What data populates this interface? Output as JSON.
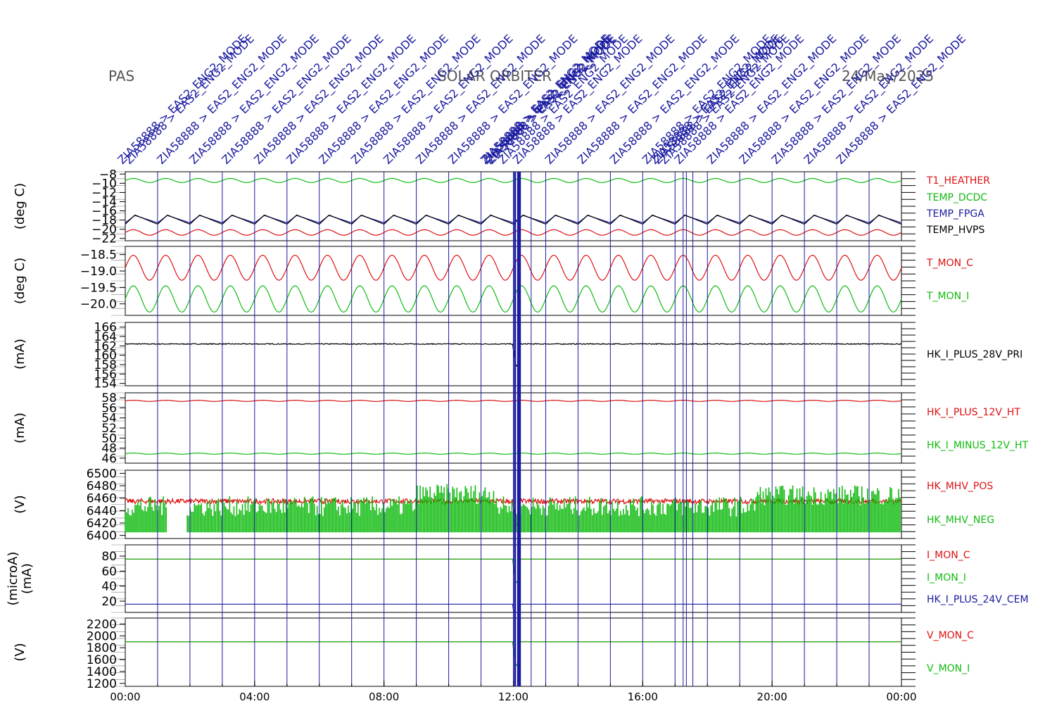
{
  "header": {
    "instrument": "PAS",
    "mission": "SOLAR ORBITER",
    "date": "24/May/2025"
  },
  "event_label": "ZIA58888 > EAS2_ENG2_MODE",
  "event_label_color": "#1a1aa0",
  "time_axis": {
    "ticks": [
      "00:00",
      "04:00",
      "08:00",
      "12:00",
      "16:00",
      "20:00",
      "00:00"
    ],
    "range_hours": [
      0,
      24
    ]
  },
  "event_marker_hours": [
    1,
    2,
    3,
    4,
    5,
    6,
    7,
    8,
    9,
    10,
    11,
    12,
    12.05,
    12.15,
    12.2,
    12.55,
    13,
    14,
    15,
    16,
    17,
    17.25,
    17.35,
    17.55,
    18,
    19,
    20,
    21,
    22,
    23
  ],
  "chart_data": [
    {
      "type": "line",
      "ylabel": "(deg C)",
      "yticks": [
        "-8",
        "-10",
        "-12",
        "-14",
        "-16",
        "-18",
        "-20",
        "-22"
      ],
      "ylim": [
        -22.5,
        -7.5
      ],
      "series": [
        {
          "name": "T1_HEATHER",
          "color": "#dd1111",
          "base": -20.7,
          "amp": 0.6,
          "period_h": 1.0,
          "shape": "sine"
        },
        {
          "name": "TEMP_DCDC",
          "color": "#11bb11",
          "base": -9.4,
          "amp": 0.45,
          "period_h": 1.0,
          "shape": "sine"
        },
        {
          "name": "TEMP_FPGA",
          "color": "#1a1aa0",
          "base": -17.8,
          "amp": 0.8,
          "period_h": 1.0,
          "shape": "saw"
        },
        {
          "name": "TEMP_HVPS",
          "color": "#000000",
          "base": -17.9,
          "amp": 1.0,
          "period_h": 1.0,
          "shape": "saw"
        }
      ]
    },
    {
      "type": "line",
      "ylabel": "(deg C)",
      "yticks": [
        "-18.5",
        "-19.0",
        "-19.5",
        "-20.0"
      ],
      "ylim": [
        -20.35,
        -18.25
      ],
      "series": [
        {
          "name": "T_MON_C",
          "color": "#dd1111",
          "base": -18.9,
          "amp": 0.38,
          "period_h": 1.0,
          "shape": "sine"
        },
        {
          "name": "T_MON_I",
          "color": "#11bb11",
          "base": -19.85,
          "amp": 0.4,
          "period_h": 1.0,
          "shape": "sine"
        }
      ]
    },
    {
      "type": "line",
      "ylabel": "(mA)",
      "yticks": [
        "166",
        "164",
        "162",
        "160",
        "158",
        "156",
        "154"
      ],
      "ylim": [
        153.5,
        167
      ],
      "series": [
        {
          "name": "HK_I_PLUS_28V_PRI",
          "color": "#000000",
          "base": 162.4,
          "amp": 0.1,
          "period_h": 0.3,
          "shape": "noise"
        }
      ]
    },
    {
      "type": "line",
      "ylabel": "(mA)",
      "yticks": [
        "58",
        "56",
        "54",
        "52",
        "50",
        "48",
        "46"
      ],
      "ylim": [
        45,
        59
      ],
      "series": [
        {
          "name": "HK_I_PLUS_12V_HT",
          "color": "#dd1111",
          "base": 57.4,
          "amp": 0.12,
          "period_h": 1.0,
          "shape": "sine"
        },
        {
          "name": "HK_I_MINUS_12V_HT",
          "color": "#11bb11",
          "base": 46.9,
          "amp": 0.12,
          "period_h": 1.0,
          "shape": "sine"
        }
      ]
    },
    {
      "type": "area",
      "ylabel": "(V)",
      "yticks": [
        "6500",
        "6480",
        "6460",
        "6440",
        "6420",
        "6400"
      ],
      "ylim": [
        6395,
        6505
      ],
      "series": [
        {
          "name": "HK_MHV_POS",
          "color": "#dd1111",
          "base": 6455,
          "amp": 4,
          "period_h": 1.0,
          "shape": "noise"
        },
        {
          "name": "HK_MHV_NEG",
          "color": "#11bb11",
          "base": 6413,
          "amp": 50,
          "period_h": 0.1,
          "shape": "bars"
        }
      ]
    },
    {
      "type": "line",
      "ylabel": "(microA)\n(mA)",
      "yticks": [
        "80",
        "60",
        "40",
        "20"
      ],
      "ylim": [
        5,
        95
      ],
      "series": [
        {
          "name": "I_MON_C",
          "color": "#dd1111",
          "base": 76,
          "amp": 0.3,
          "period_h": 1.0,
          "shape": "flat"
        },
        {
          "name": "I_MON_I",
          "color": "#11bb11",
          "base": 76,
          "amp": 0.3,
          "period_h": 1.0,
          "shape": "flat"
        },
        {
          "name": "HK_I_PLUS_24V_CEM",
          "color": "#1a1aa0",
          "base": 16,
          "amp": 0.2,
          "period_h": 1.0,
          "shape": "flat"
        }
      ]
    },
    {
      "type": "line",
      "ylabel": "(V)",
      "yticks": [
        "2200",
        "2000",
        "1800",
        "1600",
        "1400",
        "1200"
      ],
      "ylim": [
        1150,
        2300
      ],
      "series": [
        {
          "name": "V_MON_C",
          "color": "#dd1111",
          "base": 1900,
          "amp": 0,
          "period_h": 1.0,
          "shape": "flat"
        },
        {
          "name": "V_MON_I",
          "color": "#11bb11",
          "base": 1900,
          "amp": 0,
          "period_h": 1.0,
          "shape": "flat"
        }
      ]
    }
  ]
}
